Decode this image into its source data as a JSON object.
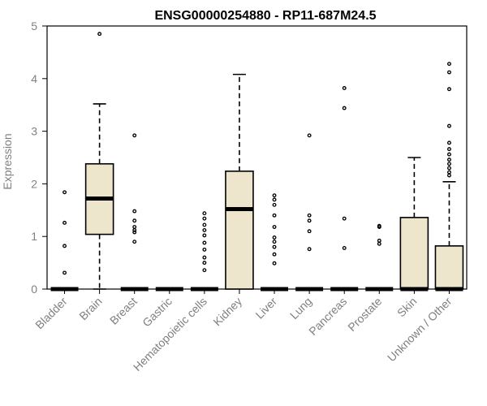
{
  "chart_data": {
    "type": "boxplot",
    "title": "ENSG00000254880 - RP11-687M24.5",
    "ylabel": "Expression",
    "ylim": [
      0,
      5
    ],
    "yticks": [
      0,
      1,
      2,
      3,
      4,
      5
    ],
    "grid": false,
    "colors": {
      "box_fill": "#ede6cc",
      "stroke": "#000000",
      "tick_text": "#808080"
    },
    "categories": [
      "Bladder",
      "Brain",
      "Breast",
      "Gastric",
      "Hematopoietic cells",
      "Kidney",
      "Liver",
      "Lung",
      "Pancreas",
      "Prostate",
      "Skin",
      "Unknown / Other"
    ],
    "boxes": [
      {
        "q1": 0,
        "median": 0,
        "q3": 0,
        "whisker_low": 0,
        "whisker_high": 0,
        "outliers": [
          0.31,
          0.82,
          1.26,
          1.84
        ]
      },
      {
        "q1": 1.04,
        "median": 1.72,
        "q3": 2.38,
        "whisker_low": 0,
        "whisker_high": 3.52,
        "outliers": [
          4.85
        ]
      },
      {
        "q1": 0,
        "median": 0,
        "q3": 0,
        "whisker_low": 0,
        "whisker_high": 0,
        "outliers": [
          0.9,
          1.08,
          1.12,
          1.18,
          1.3,
          1.48,
          2.92
        ]
      },
      {
        "q1": 0,
        "median": 0,
        "q3": 0,
        "whisker_low": 0,
        "whisker_high": 0,
        "outliers": []
      },
      {
        "q1": 0,
        "median": 0,
        "q3": 0,
        "whisker_low": 0,
        "whisker_high": 0,
        "outliers": [
          0.36,
          0.5,
          0.6,
          0.75,
          0.88,
          1.02,
          1.12,
          1.22,
          1.34,
          1.44
        ]
      },
      {
        "q1": 0,
        "median": 1.52,
        "q3": 2.24,
        "whisker_low": 0,
        "whisker_high": 4.08,
        "outliers": []
      },
      {
        "q1": 0,
        "median": 0,
        "q3": 0,
        "whisker_low": 0,
        "whisker_high": 0,
        "outliers": [
          0.49,
          0.66,
          0.8,
          0.9,
          0.98,
          1.18,
          1.4,
          1.6,
          1.7,
          1.78
        ]
      },
      {
        "q1": 0,
        "median": 0,
        "q3": 0,
        "whisker_low": 0,
        "whisker_high": 0,
        "outliers": [
          0.76,
          1.1,
          1.3,
          1.4,
          2.92
        ]
      },
      {
        "q1": 0,
        "median": 0,
        "q3": 0,
        "whisker_low": 0,
        "whisker_high": 0,
        "outliers": [
          0.78,
          1.34,
          3.44,
          3.82
        ]
      },
      {
        "q1": 0,
        "median": 0,
        "q3": 0,
        "whisker_low": 0,
        "whisker_high": 0,
        "outliers": [
          0.86,
          0.92,
          1.18,
          1.2
        ]
      },
      {
        "q1": 0,
        "median": 0,
        "q3": 1.36,
        "whisker_low": 0,
        "whisker_high": 2.5,
        "outliers": []
      },
      {
        "q1": 0,
        "median": 0,
        "q3": 0.82,
        "whisker_low": 0,
        "whisker_high": 2.04,
        "outliers": [
          2.16,
          2.22,
          2.3,
          2.38,
          2.46,
          2.56,
          2.66,
          2.78,
          3.1,
          3.8,
          4.12,
          4.28
        ]
      }
    ]
  }
}
